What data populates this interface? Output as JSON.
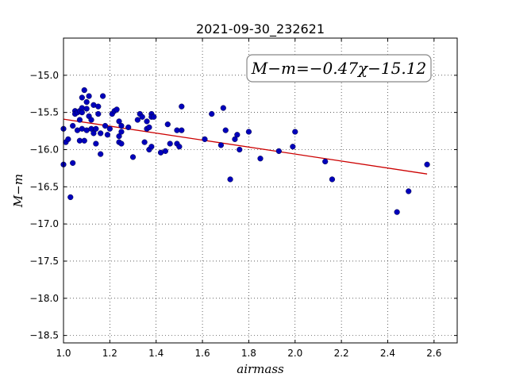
{
  "chart_data": {
    "type": "scatter",
    "title": "2021-09-30_232621",
    "xlabel": "airmass",
    "ylabel": "M−m",
    "xlim": [
      1.0,
      2.7
    ],
    "ylim": [
      -18.6,
      -14.5
    ],
    "y_inverted": true,
    "grid": true,
    "xticks": [
      1.0,
      1.2,
      1.4,
      1.6,
      1.8,
      2.0,
      2.2,
      2.4,
      2.6
    ],
    "xtick_labels": [
      "1.0",
      "1.2",
      "1.4",
      "1.6",
      "1.8",
      "2.0",
      "2.2",
      "2.4",
      "2.6"
    ],
    "yticks": [
      -15.0,
      -15.5,
      -16.0,
      -16.5,
      -17.0,
      -17.5,
      -18.0,
      -18.5
    ],
    "ytick_labels": [
      "−15.0",
      "−15.5",
      "−16.0",
      "−16.5",
      "−17.0",
      "−17.5",
      "−18.0",
      "−18.5"
    ],
    "annotation": "M−m=−0.47χ−15.12",
    "fit": {
      "slope": -0.47,
      "intercept": -15.12,
      "x_range": [
        1.0,
        2.57
      ],
      "color": "#cc0000"
    },
    "point_color": "#0000bb",
    "points": [
      [
        1.0,
        -15.72
      ],
      [
        1.01,
        -15.9
      ],
      [
        1.0,
        -16.2
      ],
      [
        1.02,
        -15.86
      ],
      [
        1.03,
        -16.64
      ],
      [
        1.04,
        -16.18
      ],
      [
        1.04,
        -15.68
      ],
      [
        1.05,
        -15.48
      ],
      [
        1.05,
        -15.52
      ],
      [
        1.06,
        -15.5
      ],
      [
        1.06,
        -15.74
      ],
      [
        1.07,
        -15.6
      ],
      [
        1.07,
        -15.88
      ],
      [
        1.07,
        -15.48
      ],
      [
        1.08,
        -15.3
      ],
      [
        1.08,
        -15.44
      ],
      [
        1.08,
        -15.5
      ],
      [
        1.08,
        -15.72
      ],
      [
        1.09,
        -15.2
      ],
      [
        1.09,
        -15.88
      ],
      [
        1.1,
        -15.45
      ],
      [
        1.1,
        -15.36
      ],
      [
        1.1,
        -15.74
      ],
      [
        1.11,
        -15.28
      ],
      [
        1.11,
        -15.55
      ],
      [
        1.12,
        -15.6
      ],
      [
        1.12,
        -15.72
      ],
      [
        1.13,
        -15.4
      ],
      [
        1.13,
        -15.78
      ],
      [
        1.14,
        -15.92
      ],
      [
        1.14,
        -15.72
      ],
      [
        1.15,
        -15.52
      ],
      [
        1.15,
        -15.42
      ],
      [
        1.16,
        -15.78
      ],
      [
        1.16,
        -16.06
      ],
      [
        1.17,
        -15.28
      ],
      [
        1.18,
        -15.68
      ],
      [
        1.19,
        -15.8
      ],
      [
        1.2,
        -15.72
      ],
      [
        1.21,
        -15.52
      ],
      [
        1.22,
        -15.48
      ],
      [
        1.23,
        -15.46
      ],
      [
        1.24,
        -15.62
      ],
      [
        1.24,
        -15.82
      ],
      [
        1.24,
        -15.9
      ],
      [
        1.25,
        -15.92
      ],
      [
        1.25,
        -15.76
      ],
      [
        1.25,
        -15.68
      ],
      [
        1.28,
        -15.7
      ],
      [
        1.3,
        -16.1
      ],
      [
        1.32,
        -15.6
      ],
      [
        1.33,
        -15.52
      ],
      [
        1.34,
        -15.56
      ],
      [
        1.35,
        -15.9
      ],
      [
        1.36,
        -15.62
      ],
      [
        1.36,
        -15.72
      ],
      [
        1.37,
        -15.7
      ],
      [
        1.37,
        -16.0
      ],
      [
        1.38,
        -15.52
      ],
      [
        1.38,
        -15.56
      ],
      [
        1.38,
        -15.96
      ],
      [
        1.39,
        -15.56
      ],
      [
        1.42,
        -16.04
      ],
      [
        1.44,
        -16.02
      ],
      [
        1.45,
        -15.66
      ],
      [
        1.46,
        -15.92
      ],
      [
        1.49,
        -15.74
      ],
      [
        1.49,
        -15.92
      ],
      [
        1.5,
        -15.96
      ],
      [
        1.51,
        -15.42
      ],
      [
        1.51,
        -15.74
      ],
      [
        1.61,
        -15.86
      ],
      [
        1.64,
        -15.52
      ],
      [
        1.68,
        -15.94
      ],
      [
        1.69,
        -15.44
      ],
      [
        1.7,
        -15.74
      ],
      [
        1.72,
        -16.4
      ],
      [
        1.74,
        -15.86
      ],
      [
        1.75,
        -15.8
      ],
      [
        1.76,
        -16.0
      ],
      [
        1.8,
        -15.76
      ],
      [
        1.85,
        -16.12
      ],
      [
        1.93,
        -16.02
      ],
      [
        1.99,
        -15.96
      ],
      [
        2.0,
        -15.76
      ],
      [
        2.13,
        -16.16
      ],
      [
        2.16,
        -16.4
      ],
      [
        2.44,
        -16.84
      ],
      [
        2.49,
        -16.56
      ],
      [
        2.57,
        -16.2
      ]
    ]
  }
}
